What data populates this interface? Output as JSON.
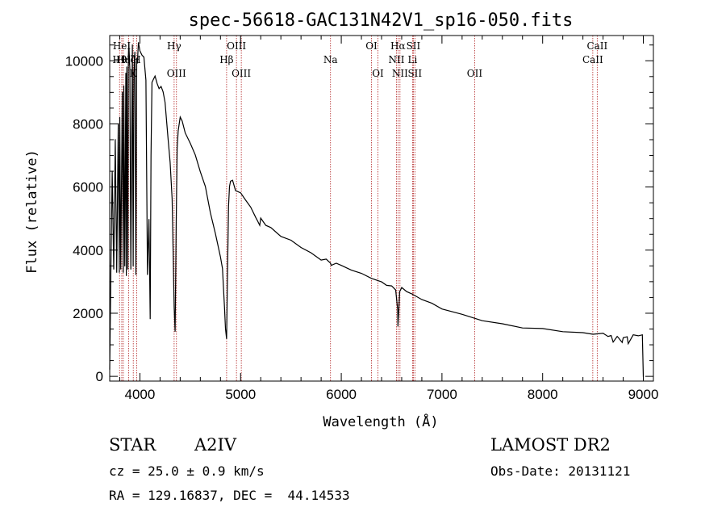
{
  "chart_data": {
    "type": "line",
    "title": "spec-56618-GAC131N42V1_sp16-050.fits",
    "xlabel": "Wavelength (Å)",
    "ylabel": "Flux (relative)",
    "xlim": [
      3700,
      9100
    ],
    "ylim": [
      -150,
      10800
    ],
    "x_ticks": [
      4000,
      5000,
      6000,
      7000,
      8000,
      9000
    ],
    "y_ticks": [
      0,
      2000,
      4000,
      6000,
      8000,
      10000
    ],
    "grid": false,
    "legend": "none",
    "line_color": "#000000",
    "marker_color": "#b22222",
    "series": [
      {
        "x": [
          3700,
          3712,
          3725,
          3740,
          3755,
          3770,
          3785,
          3795,
          3800,
          3810,
          3825,
          3835,
          3840,
          3850,
          3860,
          3865,
          3870,
          3880,
          3885,
          3890,
          3900,
          3910,
          3925,
          3933,
          3940,
          3950,
          3960,
          3968,
          3975,
          3985,
          4000,
          4020,
          4040,
          4060,
          4075,
          4090,
          4102,
          4110,
          4120,
          4130,
          4150,
          4170,
          4190,
          4210,
          4230,
          4250,
          4280,
          4300,
          4320,
          4340,
          4350,
          4360,
          4370,
          4380,
          4400,
          4420,
          4450,
          4500,
          4550,
          4600,
          4650,
          4700,
          4750,
          4800,
          4820,
          4840,
          4850,
          4861,
          4870,
          4880,
          4890,
          4900,
          4920,
          4950,
          5000,
          5050,
          5100,
          5150,
          5170,
          5190,
          5200,
          5250,
          5300,
          5400,
          5500,
          5600,
          5700,
          5800,
          5850,
          5893,
          5900,
          5950,
          6000,
          6100,
          6200,
          6300,
          6400,
          6450,
          6500,
          6540,
          6560,
          6563,
          6570,
          6580,
          6600,
          6650,
          6700,
          6800,
          6900,
          7000,
          7200,
          7400,
          7600,
          7800,
          8000,
          8200,
          8400,
          8500,
          8600,
          8650,
          8680,
          8700,
          8740,
          8750,
          8790,
          8800,
          8840,
          8850,
          8900,
          8950,
          8990,
          9000
        ],
        "values": [
          200,
          3500,
          6500,
          3400,
          7500,
          3300,
          8000,
          3300,
          8200,
          3400,
          9000,
          3300,
          9200,
          3500,
          9600,
          3200,
          9800,
          3400,
          10100,
          10600,
          9700,
          3400,
          10500,
          3500,
          9600,
          10300,
          3200,
          10100,
          9900,
          10600,
          10300,
          10200,
          10100,
          9400,
          3200,
          5000,
          1800,
          7000,
          9300,
          9400,
          9500,
          9300,
          9100,
          9200,
          9000,
          8700,
          7500,
          6800,
          5600,
          2200,
          1400,
          4800,
          7200,
          7800,
          8200,
          8100,
          7700,
          7400,
          7000,
          6500,
          6000,
          5200,
          4500,
          3800,
          3400,
          2200,
          1500,
          1200,
          3200,
          5400,
          6000,
          6200,
          6200,
          5900,
          5800,
          5600,
          5350,
          5050,
          4900,
          4800,
          5000,
          4800,
          4700,
          4450,
          4300,
          4100,
          3900,
          3700,
          3700,
          3600,
          3500,
          3600,
          3500,
          3380,
          3250,
          3120,
          2980,
          2900,
          2850,
          2750,
          2100,
          1600,
          2000,
          2700,
          2800,
          2700,
          2600,
          2450,
          2300,
          2150,
          1950,
          1780,
          1650,
          1550,
          1500,
          1430,
          1370,
          1350,
          1350,
          1280,
          1280,
          1100,
          1250,
          1250,
          1060,
          1240,
          1240,
          1050,
          1300,
          1300,
          1300,
          0
        ]
      }
    ],
    "lines": [
      {
        "name": "Hθ",
        "wl": 3798,
        "row": 2
      },
      {
        "name": "HeI",
        "wl": 3820,
        "row": 1
      },
      {
        "name": "Hη",
        "wl": 3835,
        "row": 2
      },
      {
        "name": "Hζ",
        "wl": 3889,
        "row": 2
      },
      {
        "name": "K",
        "wl": 3934,
        "row": 3
      },
      {
        "name": "H",
        "wl": 3968,
        "row": 2
      },
      {
        "name": "Hγ",
        "wl": 4340,
        "row": 1
      },
      {
        "name": "OIII",
        "wl": 4363,
        "row": 3
      },
      {
        "name": "Hβ",
        "wl": 4861,
        "row": 2
      },
      {
        "name": "OIII",
        "wl": 4959,
        "row": 1
      },
      {
        "name": "OIII",
        "wl": 5007,
        "row": 3
      },
      {
        "name": "Na",
        "wl": 5893,
        "row": 2
      },
      {
        "name": "OI",
        "wl": 6300,
        "row": 1
      },
      {
        "name": "OI",
        "wl": 6364,
        "row": 3
      },
      {
        "name": "NII",
        "wl": 6548,
        "row": 2
      },
      {
        "name": "Hα",
        "wl": 6563,
        "row": 1
      },
      {
        "name": "NII",
        "wl": 6583,
        "row": 3
      },
      {
        "name": "Li",
        "wl": 6708,
        "row": 2
      },
      {
        "name": "SII",
        "wl": 6716,
        "row": 1
      },
      {
        "name": "SII",
        "wl": 6731,
        "row": 3
      },
      {
        "name": "OII",
        "wl": 7325,
        "row": 3
      },
      {
        "name": "CaII",
        "wl": 8498,
        "row": 2
      },
      {
        "name": "CaII",
        "wl": 8542,
        "row": 1
      }
    ]
  },
  "info": {
    "object_class": "STAR",
    "subclass": "A2IV",
    "survey": "LAMOST DR2",
    "redshift": "cz = 25.0 ± 0.9 km/s",
    "obs_date": "Obs-Date: 20131121",
    "coords": "RA = 129.16837, DEC =  44.14533"
  }
}
